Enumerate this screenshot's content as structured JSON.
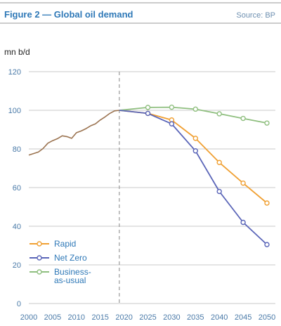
{
  "header": {
    "title": "Figure 2 — Global oil demand",
    "source": "Source: BP"
  },
  "chart_data": {
    "type": "line",
    "ylabel": "mn b/d",
    "xlim": [
      2000,
      2050
    ],
    "ylim": [
      0,
      120
    ],
    "x_ticks": [
      2000,
      2005,
      2010,
      2015,
      2020,
      2025,
      2030,
      2035,
      2040,
      2045,
      2050
    ],
    "y_ticks": [
      0,
      20,
      40,
      60,
      80,
      100,
      120
    ],
    "grid": true,
    "split_year": 2019,
    "legend_position": "bottom-left",
    "history": {
      "color": "#9b7350",
      "points": [
        [
          2000,
          76.8
        ],
        [
          2002,
          78.4
        ],
        [
          2003,
          80.2
        ],
        [
          2004,
          83.0
        ],
        [
          2005,
          84.3
        ],
        [
          2006,
          85.3
        ],
        [
          2007,
          86.8
        ],
        [
          2008,
          86.4
        ],
        [
          2009,
          85.5
        ],
        [
          2010,
          88.4
        ],
        [
          2011,
          89.3
        ],
        [
          2012,
          90.5
        ],
        [
          2013,
          92.0
        ],
        [
          2014,
          93.0
        ],
        [
          2015,
          95.0
        ],
        [
          2016,
          96.6
        ],
        [
          2017,
          98.4
        ],
        [
          2018,
          99.7
        ],
        [
          2019,
          100.0
        ]
      ]
    },
    "series": [
      {
        "name": "Rapid",
        "color": "#f0a033",
        "points": [
          [
            2019,
            100.0
          ],
          [
            2025,
            98.4
          ],
          [
            2030,
            95.0
          ],
          [
            2035,
            85.5
          ],
          [
            2040,
            73.0
          ],
          [
            2045,
            62.3
          ],
          [
            2050,
            52.0
          ]
        ]
      },
      {
        "name": "Net Zero",
        "color": "#5a65b8",
        "points": [
          [
            2019,
            100.0
          ],
          [
            2025,
            98.4
          ],
          [
            2030,
            93.0
          ],
          [
            2035,
            79.0
          ],
          [
            2040,
            58.0
          ],
          [
            2045,
            42.0
          ],
          [
            2050,
            30.5
          ]
        ]
      },
      {
        "name": "Business-as-usual",
        "label_lines": [
          "Business-",
          "as-usual"
        ],
        "color": "#8fbf7f",
        "points": [
          [
            2019,
            100.0
          ],
          [
            2025,
            101.5
          ],
          [
            2030,
            101.6
          ],
          [
            2035,
            100.6
          ],
          [
            2040,
            98.2
          ],
          [
            2045,
            95.8
          ],
          [
            2050,
            93.4
          ]
        ]
      }
    ]
  }
}
